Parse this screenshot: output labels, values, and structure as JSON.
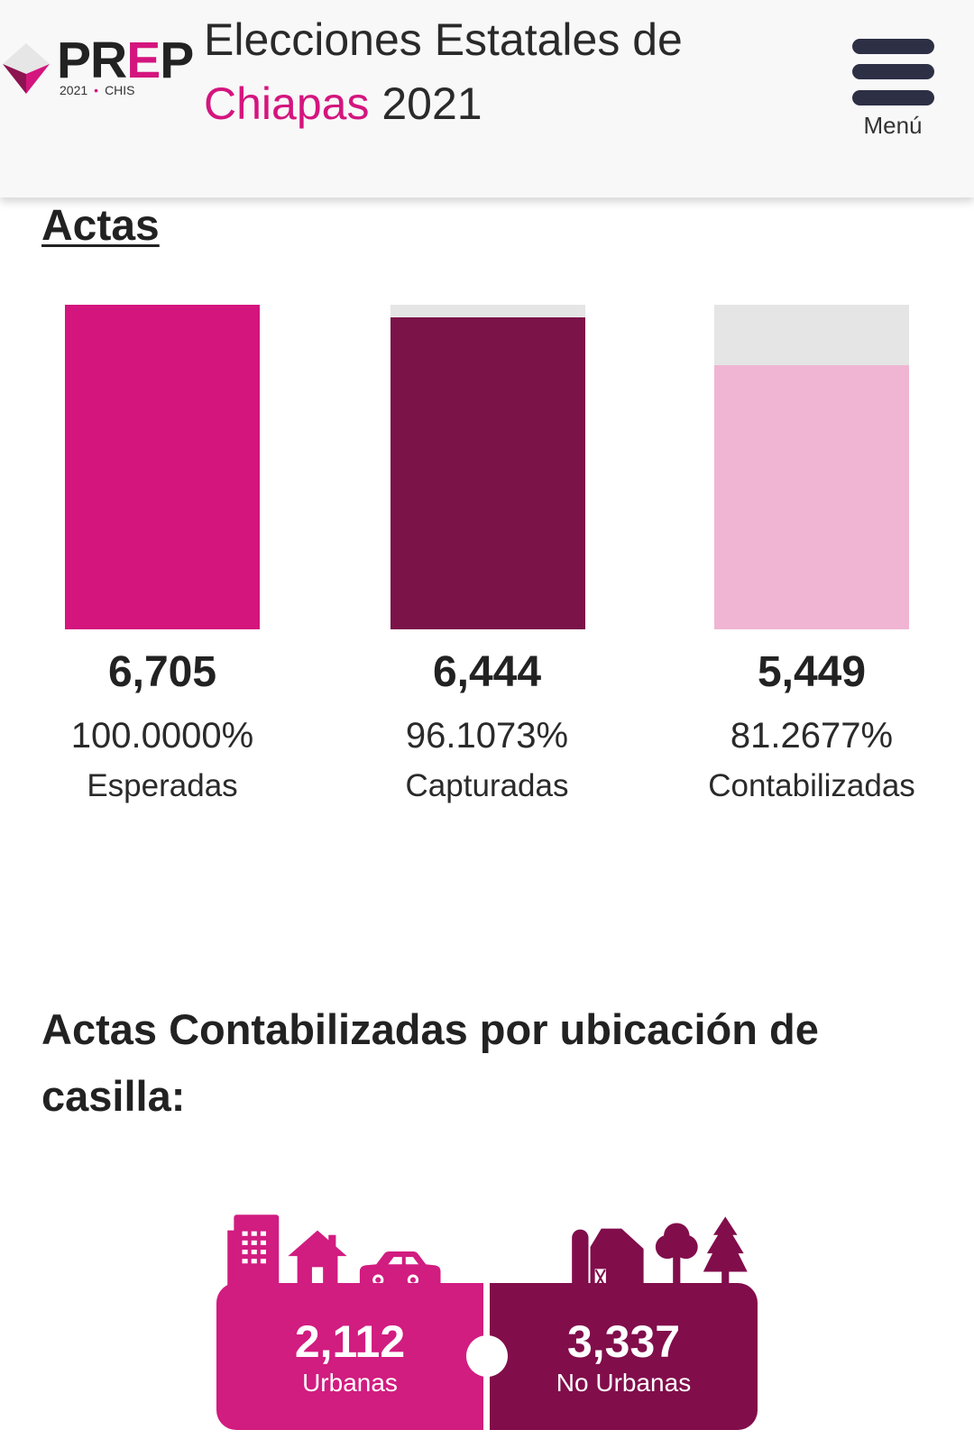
{
  "header": {
    "logo": {
      "wordmark_start": "PR",
      "wordmark_accent": "E",
      "wordmark_end": "P",
      "tagline_year": "2021",
      "tagline_separator": "•",
      "tagline_state": "CHIS",
      "icon": "prep-diamond-logo-icon"
    },
    "title_line1": "Elecciones Estatales de",
    "title_state": "Chiapas",
    "title_year": "2021",
    "menu": {
      "icon": "hamburger-menu-icon",
      "label": "Menú"
    }
  },
  "chart_data": {
    "type": "bar",
    "title": "Actas",
    "categories": [
      "Esperadas",
      "Capturadas",
      "Contabilizadas"
    ],
    "values": [
      6705,
      6444,
      5449
    ],
    "value_labels": [
      "6,705",
      "6,444",
      "5,449"
    ],
    "percent_labels": [
      "100.0000%",
      "96.1073%",
      "81.2677%"
    ],
    "ylim": [
      0,
      6705
    ],
    "xlabel": "",
    "ylabel": "",
    "grid": false,
    "colors": [
      "#d4157e",
      "#7b1248",
      "#f0b5d3"
    ],
    "track_color": "#e5e5e5"
  },
  "ubicacion": {
    "heading": "Actas Contabilizadas por ubicación de casilla:",
    "items": [
      {
        "value": "2,112",
        "label": "Urbanas",
        "color": "#d11c80",
        "icons": [
          "office-building-icon",
          "house-icon",
          "car-icon"
        ]
      },
      {
        "value": "3,337",
        "label": "No Urbanas",
        "color": "#810d4b",
        "icons": [
          "silo-icon",
          "barn-icon",
          "round-tree-icon",
          "pine-tree-icon"
        ]
      }
    ]
  },
  "colors": {
    "brand_pink": "#d4157e",
    "brand_maroon": "#7b1248",
    "brand_light_pink": "#f0b5d3",
    "menu_icon": "#2d2f45",
    "header_background": "#f8f8f8",
    "text": "#222222"
  }
}
